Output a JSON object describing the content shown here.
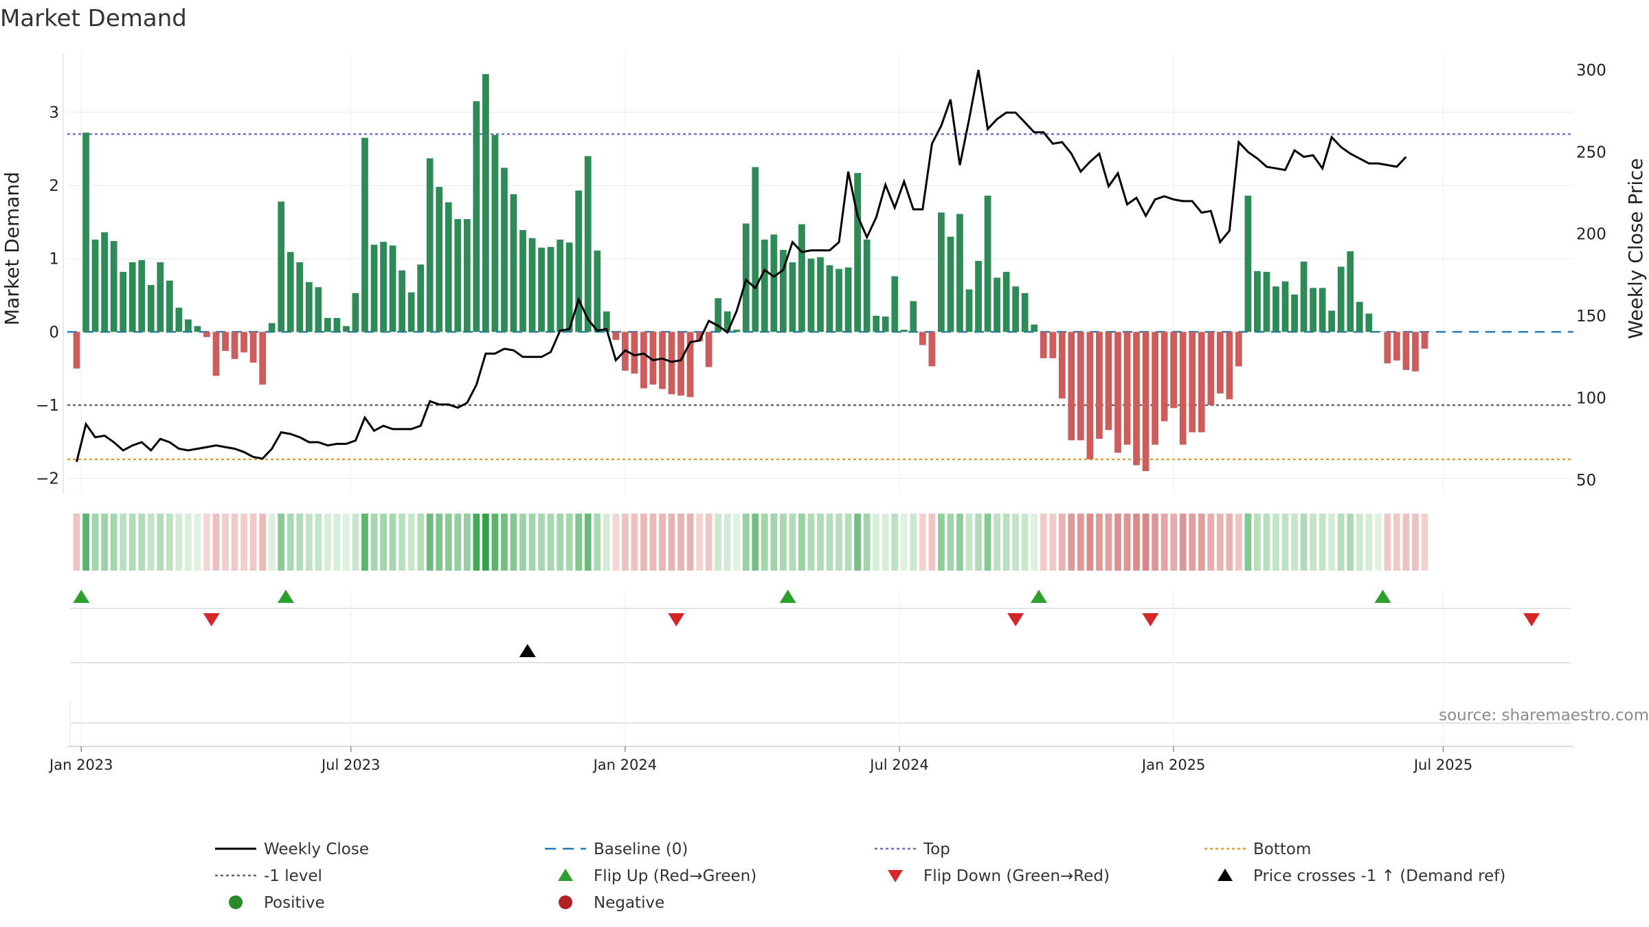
{
  "chart_data": {
    "type": "bar",
    "title": "Market Demand",
    "ylabel": "Market Demand",
    "ylabel_right": "Weekly Close Price",
    "ylim": [
      -2.2,
      3.8
    ],
    "ylim_right": [
      42,
      310
    ],
    "yticks": [
      {
        "value": 3,
        "label": "3"
      },
      {
        "value": 2,
        "label": "2"
      },
      {
        "value": 1,
        "label": "1"
      },
      {
        "value": 0,
        "label": "0"
      },
      {
        "value": -1,
        "label": "−1"
      },
      {
        "value": -2,
        "label": "−2"
      }
    ],
    "yticks_right": [
      {
        "value": 300,
        "label": "300"
      },
      {
        "value": 250,
        "label": "250"
      },
      {
        "value": 200,
        "label": "200"
      },
      {
        "value": 150,
        "label": "150"
      },
      {
        "value": 100,
        "label": "100"
      },
      {
        "value": 50,
        "label": "50"
      }
    ],
    "x_range": [
      -1,
      161
    ],
    "x_ticks": [
      {
        "week": 0.5,
        "label": "Jan 2023"
      },
      {
        "week": 29.5,
        "label": "Jul 2023"
      },
      {
        "week": 59,
        "label": "Jan 2024"
      },
      {
        "week": 88.5,
        "label": "Jul 2024"
      },
      {
        "week": 118,
        "label": "Jan 2025"
      },
      {
        "week": 147,
        "label": "Jul 2025"
      }
    ],
    "reference_lines": {
      "top": 2.7,
      "minus_one": -1,
      "bottom": -1.74,
      "baseline": 0
    },
    "demand": [
      -0.5,
      2.72,
      1.26,
      1.36,
      1.24,
      0.82,
      0.95,
      0.98,
      0.64,
      0.95,
      0.7,
      0.33,
      0.17,
      0.08,
      -0.07,
      -0.6,
      -0.26,
      -0.37,
      -0.28,
      -0.42,
      -0.72,
      0.12,
      1.78,
      1.09,
      0.95,
      0.68,
      0.61,
      0.19,
      0.19,
      0.08,
      0.53,
      2.65,
      1.19,
      1.23,
      1.18,
      0.84,
      0.54,
      0.92,
      2.37,
      1.98,
      1.77,
      1.54,
      1.54,
      3.15,
      3.52,
      2.69,
      2.24,
      1.88,
      1.39,
      1.28,
      1.15,
      1.16,
      1.26,
      1.22,
      1.93,
      2.4,
      1.11,
      0.28,
      -0.11,
      -0.53,
      -0.57,
      -0.77,
      -0.72,
      -0.78,
      -0.85,
      -0.87,
      -0.89,
      -0.13,
      -0.48,
      0.46,
      0.28,
      0.03,
      1.48,
      2.25,
      1.26,
      1.33,
      1.12,
      0.95,
      1.47,
      1.0,
      1.02,
      0.91,
      0.86,
      0.88,
      2.17,
      1.26,
      0.22,
      0.21,
      0.76,
      0.03,
      0.42,
      -0.18,
      -0.47,
      1.63,
      1.3,
      1.61,
      0.58,
      0.97,
      1.86,
      0.74,
      0.82,
      0.62,
      0.53,
      0.1,
      -0.36,
      -0.36,
      -0.91,
      -1.48,
      -1.48,
      -1.74,
      -1.46,
      -1.34,
      -1.65,
      -1.54,
      -1.82,
      -1.9,
      -1.54,
      -1.22,
      -1.04,
      -1.54,
      -1.37,
      -1.37,
      -1.0,
      -0.84,
      -0.92,
      -0.47,
      1.86,
      0.83,
      0.82,
      0.62,
      0.69,
      0.51,
      0.96,
      0.6,
      0.6,
      0.29,
      0.89,
      1.1,
      0.41,
      0.25,
      0.01,
      -0.43,
      -0.39,
      -0.52,
      -0.54,
      -0.23
    ],
    "price": [
      61,
      84,
      76,
      77,
      73,
      68,
      71,
      73,
      68,
      75,
      73,
      69,
      68,
      69,
      70,
      71,
      70,
      69,
      67,
      64,
      63,
      69,
      79,
      78,
      76,
      73,
      73,
      71,
      72,
      72,
      74,
      88,
      80,
      83,
      81,
      81,
      81,
      83,
      98,
      96,
      96,
      94,
      97,
      108,
      127,
      127,
      130,
      129,
      125,
      125,
      125,
      128,
      141,
      142,
      160,
      148,
      141,
      142,
      123,
      129,
      126,
      127,
      123,
      124,
      122,
      123,
      134,
      135,
      147,
      144,
      140,
      153,
      172,
      167,
      178,
      174,
      178,
      195,
      189,
      190,
      190,
      190,
      195,
      238,
      211,
      198,
      210,
      230,
      216,
      232,
      215,
      215,
      255,
      266,
      282,
      242,
      270,
      300,
      264,
      270,
      274,
      274,
      268,
      262,
      262,
      255,
      256,
      249,
      238,
      244,
      249,
      229,
      237,
      218,
      222,
      211,
      221,
      223,
      221,
      220,
      220,
      213,
      214,
      195,
      202,
      256,
      250,
      246,
      241,
      240,
      239,
      251,
      247,
      248,
      240,
      259,
      253,
      249,
      246,
      243,
      243,
      242,
      241,
      247
    ],
    "flip_up_weeks": [
      0.5,
      22.5,
      76.5,
      103.5,
      140.5
    ],
    "flip_down_weeks": [
      14.5,
      64.5,
      101,
      115.5,
      156.5
    ],
    "price_cross_weeks": [
      48.5
    ],
    "colors": {
      "positive_bar": "#2e8b57",
      "negative_bar": "#cd5c5c",
      "price_line": "#000000",
      "baseline": "#1f77b4",
      "top": "#6a6ad8",
      "minus_one": "#666666",
      "bottom": "#e89a2c",
      "flip_up": "#2ca02c",
      "flip_down": "#d62728",
      "cross": "#000000",
      "positive_dot": "#2a8a2a",
      "negative_dot": "#b22222"
    },
    "legend": [
      {
        "label": "Weekly Close",
        "symbol": "line-solid",
        "color": "#000000"
      },
      {
        "label": "Baseline (0)",
        "symbol": "line-dash",
        "color": "#1f77b4"
      },
      {
        "label": "Top",
        "symbol": "line-dot",
        "color": "#6a6ad8"
      },
      {
        "label": "Bottom",
        "symbol": "line-dot",
        "color": "#e89a2c"
      },
      {
        "label": "-1 level",
        "symbol": "line-dot",
        "color": "#666666"
      },
      {
        "label": "Flip Up (Red→Green)",
        "symbol": "tri-up",
        "color": "#2ca02c"
      },
      {
        "label": "Flip Down (Green→Red)",
        "symbol": "tri-down",
        "color": "#d62728"
      },
      {
        "label": "Price crosses -1 ↑ (Demand ref)",
        "symbol": "tri-up",
        "color": "#000000"
      },
      {
        "label": "Positive",
        "symbol": "dot",
        "color": "#2a8a2a"
      },
      {
        "label": "Negative",
        "symbol": "dot",
        "color": "#b22222"
      }
    ],
    "legend_placement": "bottom",
    "grid": true
  },
  "source": "source: sharemaestro.com"
}
